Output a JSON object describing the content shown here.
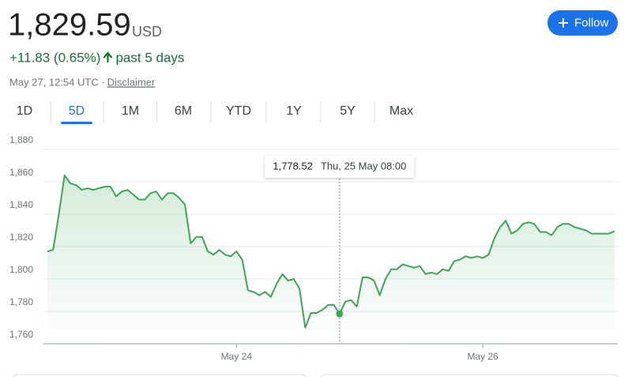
{
  "header": {
    "price": "1,829.59",
    "currency": "USD",
    "change": "+11.83 (0.65%)",
    "period": "past 5 days",
    "timestamp": "May 27, 12:54 UTC · ",
    "disclaimer": "Disclaimer",
    "follow": "Follow"
  },
  "tabs": {
    "items": [
      "1D",
      "5D",
      "1M",
      "6M",
      "YTD",
      "1Y",
      "5Y",
      "Max"
    ],
    "selected": 1
  },
  "chart_data": {
    "type": "line",
    "color": "#3da556",
    "grid": true,
    "ylim": [
      1760,
      1880
    ],
    "yticks": [
      {
        "value": 1760,
        "label": "1,760"
      },
      {
        "value": 1780,
        "label": "1,780"
      },
      {
        "value": 1800,
        "label": "1,800"
      },
      {
        "value": 1820,
        "label": "1,820"
      },
      {
        "value": 1840,
        "label": "1,840"
      },
      {
        "value": 1860,
        "label": "1,860"
      },
      {
        "value": 1880,
        "label": "1,880"
      }
    ],
    "categories": [
      null,
      null,
      null,
      null,
      null,
      null,
      null,
      null,
      null,
      null,
      null,
      null,
      null,
      null,
      null,
      null,
      null,
      null,
      null,
      null,
      null,
      null,
      null,
      null,
      null,
      null,
      null,
      null,
      null,
      null,
      null,
      null,
      null,
      "May 24",
      null,
      null,
      null,
      null,
      null,
      null,
      null,
      null,
      null,
      null,
      null,
      null,
      null,
      null,
      null,
      null,
      null,
      null,
      null,
      null,
      null,
      null,
      null,
      null,
      null,
      null,
      null,
      null,
      null,
      null,
      null,
      null,
      null,
      null,
      null,
      null,
      null,
      null,
      null,
      null,
      null,
      null,
      "May 26",
      null,
      null,
      null,
      null,
      null,
      null,
      null,
      null,
      null,
      null,
      null,
      null,
      null,
      null,
      null,
      null,
      null,
      null,
      null,
      null,
      null,
      null,
      null
    ],
    "values": [
      1817,
      1818,
      1840,
      1864,
      1859,
      1858,
      1855,
      1856,
      1855,
      1856,
      1857,
      1857,
      1851,
      1854,
      1855,
      1852,
      1849,
      1849,
      1853,
      1854,
      1849,
      1853,
      1853,
      1850,
      1846,
      1822,
      1826,
      1826,
      1817,
      1815,
      1818,
      1815,
      1814,
      1817,
      1812,
      1793,
      1792,
      1790,
      1792,
      1789,
      1797,
      1803,
      1799,
      1800,
      1794,
      1770,
      1779,
      1779,
      1781,
      1784,
      1784,
      1778.52,
      1786,
      1787,
      1783,
      1801,
      1801,
      1799,
      1790,
      1800,
      1806,
      1806,
      1809,
      1808,
      1807,
      1808,
      1803,
      1804,
      1803,
      1806,
      1805,
      1811,
      1812,
      1814,
      1813,
      1814,
      1813,
      1815,
      1825,
      1832,
      1836,
      1828,
      1830,
      1834,
      1835,
      1834,
      1829,
      1829,
      1827,
      1832,
      1834,
      1834,
      1832,
      1831,
      1830,
      1828,
      1828,
      1828,
      1828,
      1829.59
    ],
    "value_labels": [
      null,
      null,
      null,
      null,
      null,
      null,
      null,
      null,
      null,
      null,
      null,
      null,
      null,
      null,
      null,
      null,
      null,
      null,
      null,
      null,
      null,
      null,
      null,
      null,
      null,
      null,
      null,
      null,
      null,
      null,
      null,
      null,
      null,
      null,
      null,
      null,
      null,
      null,
      null,
      null,
      null,
      null,
      null,
      null,
      null,
      null,
      null,
      null,
      null,
      null,
      null,
      "1,778.52",
      null,
      null,
      null,
      null,
      null,
      null,
      null,
      null,
      null,
      null,
      null,
      null,
      null,
      null,
      null,
      null,
      null,
      null,
      null,
      null,
      null,
      null,
      null,
      null,
      null,
      null,
      null,
      null,
      null,
      null,
      null,
      null,
      null,
      null,
      null,
      null,
      null,
      null,
      null,
      null,
      null,
      null,
      null,
      null,
      null,
      null,
      null,
      null
    ],
    "tooltip_labels": [
      null,
      null,
      null,
      null,
      null,
      null,
      null,
      null,
      null,
      null,
      null,
      null,
      null,
      null,
      null,
      null,
      null,
      null,
      null,
      null,
      null,
      null,
      null,
      null,
      null,
      null,
      null,
      null,
      null,
      null,
      null,
      null,
      null,
      null,
      null,
      null,
      null,
      null,
      null,
      null,
      null,
      null,
      null,
      null,
      null,
      null,
      null,
      null,
      null,
      null,
      null,
      "Thu, 25 May 08:00",
      null,
      null,
      null,
      null,
      null,
      null,
      null,
      null,
      null,
      null,
      null,
      null,
      null,
      null,
      null,
      null,
      null,
      null,
      null,
      null,
      null,
      null,
      null,
      null,
      null,
      null,
      null,
      null,
      null,
      null,
      null,
      null,
      null,
      null,
      null,
      null,
      null,
      null,
      null,
      null,
      null,
      null,
      null,
      null,
      null,
      null,
      null,
      null
    ]
  }
}
